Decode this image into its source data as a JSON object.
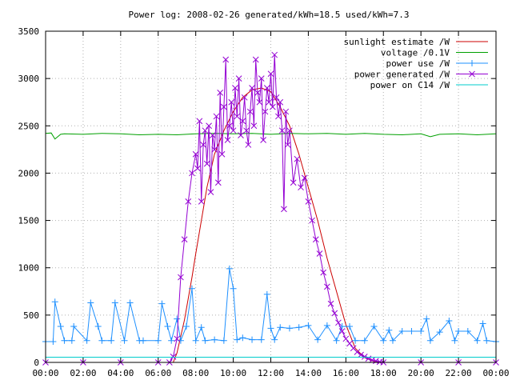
{
  "chart_data": {
    "type": "line",
    "title": "Power log: 2008-02-26 generated/kWh=18.5 used/kWh=7.3",
    "xlabel": "",
    "ylabel": "",
    "xlim": [
      0,
      24
    ],
    "ylim": [
      0,
      3500
    ],
    "grid": true,
    "legend_position": "top-right",
    "x_ticks": [
      "00:00",
      "02:00",
      "04:00",
      "06:00",
      "08:00",
      "10:00",
      "12:00",
      "14:00",
      "16:00",
      "18:00",
      "20:00",
      "22:00",
      "00:00"
    ],
    "y_ticks": [
      "0",
      "500",
      "1000",
      "1500",
      "2000",
      "2500",
      "3000",
      "3500"
    ],
    "series": [
      {
        "name": "sunlight estimate /W",
        "color": "#cc0000",
        "style": "line",
        "x": [
          6.8,
          7.0,
          7.4,
          7.8,
          8.0,
          8.3,
          8.6,
          9.0,
          9.5,
          10.0,
          10.5,
          11.0,
          11.5,
          12.0,
          12.5,
          13.0,
          13.5,
          14.0,
          14.5,
          15.0,
          15.5,
          16.0,
          16.5,
          17.0,
          17.5,
          18.0
        ],
        "values": [
          0,
          100,
          450,
          900,
          1150,
          1500,
          1850,
          2200,
          2450,
          2650,
          2800,
          2880,
          2900,
          2860,
          2700,
          2500,
          2200,
          1850,
          1500,
          1100,
          750,
          400,
          150,
          50,
          10,
          0
        ]
      },
      {
        "name": "voltage /0.1V",
        "color": "#00a000",
        "style": "line",
        "x": [
          0,
          0.3,
          0.5,
          0.8,
          1,
          2,
          3,
          4,
          5,
          6,
          7,
          8,
          9,
          10,
          11,
          12,
          13,
          14,
          15,
          16,
          17,
          18,
          19,
          20,
          20.5,
          21,
          22,
          23,
          24
        ],
        "values": [
          2420,
          2425,
          2360,
          2410,
          2415,
          2410,
          2420,
          2415,
          2405,
          2410,
          2405,
          2415,
          2420,
          2415,
          2420,
          2410,
          2420,
          2415,
          2420,
          2410,
          2420,
          2410,
          2405,
          2415,
          2385,
          2410,
          2415,
          2405,
          2415
        ]
      },
      {
        "name": "power use /W",
        "color": "#1e90ff",
        "style": "linespoints-plus",
        "x": [
          0,
          0.4,
          0.5,
          0.8,
          1.0,
          1.4,
          1.5,
          2.2,
          2.4,
          2.8,
          3.0,
          3.5,
          3.7,
          4.2,
          4.5,
          5.0,
          5.2,
          6.0,
          6.2,
          6.5,
          6.7,
          7.0,
          7.2,
          7.5,
          7.8,
          8.0,
          8.3,
          8.5,
          9.0,
          9.5,
          9.8,
          10.0,
          10.2,
          10.5,
          11.0,
          11.5,
          11.8,
          12.0,
          12.2,
          12.5,
          13.0,
          13.5,
          14.0,
          14.5,
          15.0,
          15.5,
          15.8,
          16.2,
          16.5,
          17.0,
          17.5,
          18.0,
          18.3,
          18.5,
          19.0,
          19.5,
          20.0,
          20.3,
          20.5,
          21.0,
          21.5,
          21.8,
          22.0,
          22.5,
          23.0,
          23.3,
          23.5,
          24.0
        ],
        "values": [
          220,
          220,
          640,
          380,
          230,
          230,
          380,
          230,
          630,
          380,
          230,
          230,
          630,
          230,
          630,
          230,
          230,
          230,
          620,
          380,
          230,
          460,
          230,
          380,
          780,
          230,
          370,
          230,
          240,
          230,
          990,
          780,
          240,
          260,
          240,
          240,
          720,
          360,
          240,
          370,
          360,
          370,
          390,
          240,
          390,
          230,
          380,
          380,
          230,
          230,
          380,
          230,
          340,
          230,
          330,
          330,
          330,
          460,
          230,
          320,
          440,
          230,
          330,
          330,
          230,
          410,
          230,
          220
        ]
      },
      {
        "name": "power generated /W",
        "color": "#9400d3",
        "style": "linespoints-x",
        "x": [
          0,
          2,
          4,
          6,
          6.6,
          6.8,
          7.0,
          7.2,
          7.4,
          7.6,
          7.8,
          8.0,
          8.1,
          8.2,
          8.3,
          8.4,
          8.5,
          8.6,
          8.7,
          8.8,
          8.9,
          9.0,
          9.1,
          9.2,
          9.3,
          9.4,
          9.5,
          9.6,
          9.7,
          9.8,
          9.9,
          10.0,
          10.1,
          10.2,
          10.3,
          10.4,
          10.5,
          10.6,
          10.7,
          10.8,
          10.9,
          11.0,
          11.1,
          11.2,
          11.3,
          11.4,
          11.5,
          11.6,
          11.7,
          11.8,
          11.9,
          12.0,
          12.1,
          12.2,
          12.3,
          12.4,
          12.5,
          12.6,
          12.7,
          12.8,
          12.9,
          13.0,
          13.2,
          13.4,
          13.6,
          13.8,
          14.0,
          14.2,
          14.4,
          14.6,
          14.8,
          15.0,
          15.2,
          15.4,
          15.6,
          15.8,
          16.0,
          16.2,
          16.4,
          16.6,
          16.8,
          17.0,
          17.2,
          17.4,
          17.6,
          17.8,
          18.0,
          20,
          22,
          24
        ],
        "values": [
          0,
          0,
          0,
          0,
          0,
          60,
          250,
          900,
          1300,
          1700,
          2000,
          2200,
          2050,
          2550,
          1700,
          2300,
          2450,
          2100,
          2500,
          1800,
          2400,
          2250,
          2600,
          1900,
          2850,
          2200,
          2700,
          3200,
          2350,
          2500,
          2750,
          2450,
          2900,
          2600,
          3000,
          2400,
          2550,
          2800,
          2450,
          2300,
          2650,
          2900,
          2500,
          3200,
          2850,
          2750,
          3000,
          2350,
          2650,
          2900,
          2750,
          3050,
          2700,
          3250,
          2800,
          2600,
          2750,
          2450,
          1620,
          2650,
          2300,
          2450,
          1900,
          2150,
          1850,
          1950,
          1700,
          1500,
          1300,
          1150,
          950,
          800,
          620,
          520,
          420,
          330,
          250,
          200,
          150,
          110,
          80,
          60,
          40,
          25,
          15,
          5,
          0,
          0,
          0,
          0
        ]
      },
      {
        "name": "power on C14 /W",
        "color": "#00cccc",
        "style": "line",
        "x": [
          0,
          6,
          12,
          18,
          24
        ],
        "values": [
          55,
          55,
          55,
          55,
          55
        ]
      }
    ]
  }
}
